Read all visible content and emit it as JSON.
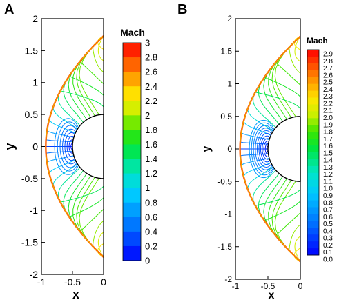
{
  "figure": {
    "panel_labels": [
      "A",
      "B"
    ]
  },
  "chart_data": [
    {
      "panel": "A",
      "type": "contour",
      "title": "",
      "xlabel": "x",
      "ylabel": "y",
      "xlim": [
        -1,
        0
      ],
      "ylim": [
        -2,
        2
      ],
      "x_ticks": [
        "-1",
        "-0.5",
        "0"
      ],
      "y_ticks": [
        "2",
        "1.5",
        "1",
        "0.5",
        "0",
        "-0.5",
        "-1",
        "-1.5",
        "-2"
      ],
      "colorbar": {
        "title": "Mach",
        "range": [
          0,
          3
        ],
        "labels": [
          "3",
          "2.8",
          "2.6",
          "2.4",
          "2.2",
          "2",
          "1.8",
          "1.6",
          "1.4",
          "1.2",
          "1",
          "0.8",
          "0.6",
          "0.4",
          "0.2",
          "0"
        ]
      },
      "body": {
        "shape": "semicircle",
        "center_x": 0,
        "radius": 0.5
      },
      "shock": {
        "shape": "bow",
        "standoff_x": -0.93,
        "ends": [
          [
            0,
            1.73
          ],
          [
            0,
            -1.73
          ]
        ]
      },
      "stagnation_point": [
        -0.5,
        0
      ]
    },
    {
      "panel": "B",
      "type": "contour",
      "title": "",
      "xlabel": "x",
      "ylabel": "y",
      "xlim": [
        -1,
        0
      ],
      "ylim": [
        -2,
        2
      ],
      "x_ticks": [
        "-1",
        "-0.5",
        "0"
      ],
      "y_ticks": [
        "2",
        "1.5",
        "1",
        "0.5",
        "0",
        "-0.5",
        "-1",
        "-1.5",
        "-2"
      ],
      "colorbar": {
        "title": "Mach",
        "range": [
          0,
          3
        ],
        "labels": [
          "2.9",
          "2.8",
          "2.7",
          "2.6",
          "2.5",
          "2.4",
          "2.3",
          "2.2",
          "2.1",
          "2.0",
          "1.9",
          "1.8",
          "1.7",
          "1.6",
          "1.5",
          "1.4",
          "1.3",
          "1.2",
          "1.1",
          "1.0",
          "0.9",
          "0.8",
          "0.7",
          "0.6",
          "0.5",
          "0.4",
          "0.3",
          "0.2",
          "0.1",
          "0.0"
        ]
      },
      "body": {
        "shape": "semicircle",
        "center_x": 0,
        "radius": 0.5
      },
      "shock": {
        "shape": "bow",
        "standoff_x": -0.93,
        "ends": [
          [
            0,
            1.73
          ],
          [
            0,
            -1.73
          ]
        ]
      },
      "stagnation_point": [
        -0.5,
        0
      ]
    }
  ]
}
